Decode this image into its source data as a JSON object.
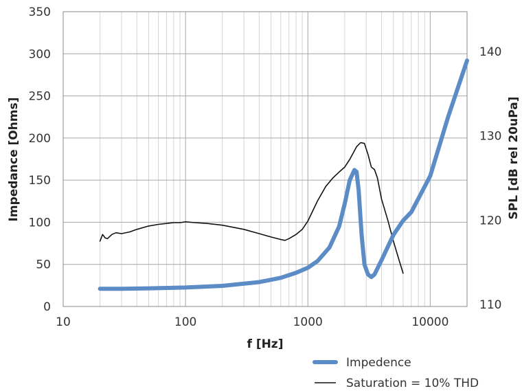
{
  "chart_data": {
    "type": "line",
    "x_scale": "log",
    "xlabel": "f [Hz]",
    "ylabel_left": "Impedance [Ohms]",
    "ylabel_right": "SPL [dB rel 20uPa]",
    "xlim": [
      10,
      20000
    ],
    "ylim_left": [
      0,
      350
    ],
    "ylim_right": [
      110,
      140
    ],
    "x_ticks": [
      10,
      100,
      1000,
      10000
    ],
    "x_tick_labels": [
      "10",
      "100",
      "1000",
      "10000"
    ],
    "y_left_ticks": [
      0,
      50,
      100,
      150,
      200,
      250,
      300,
      350
    ],
    "y_left_tick_labels": [
      "0",
      "50",
      "100",
      "150",
      "200",
      "250",
      "300",
      "350"
    ],
    "y_right_ticks": [
      110,
      120,
      130,
      140
    ],
    "y_right_tick_labels": [
      "110",
      "120",
      "130",
      "140"
    ],
    "grid": true,
    "legend_position": "bottom-right",
    "series": [
      {
        "name": "Impedence",
        "axis": "left",
        "color": "#5b8cc6",
        "x": [
          20,
          30,
          50,
          100,
          200,
          400,
          600,
          800,
          1000,
          1200,
          1500,
          1800,
          2000,
          2200,
          2400,
          2500,
          2600,
          2750,
          2900,
          3100,
          3300,
          3500,
          4000,
          5000,
          6000,
          7000,
          8000,
          10000,
          14000,
          20000
        ],
        "values": [
          21,
          21,
          21.5,
          22.5,
          24.5,
          29,
          34,
          40,
          46,
          54,
          70,
          95,
          122,
          150,
          162,
          160,
          138,
          85,
          50,
          38,
          35,
          38,
          55,
          85,
          102,
          112,
          128,
          155,
          225,
          292
        ]
      },
      {
        "name": "Saturation = 10% THD",
        "axis": "right",
        "color": "#111111",
        "x": [
          20,
          21,
          22,
          23,
          25,
          27,
          30,
          35,
          40,
          50,
          60,
          70,
          80,
          90,
          100,
          120,
          150,
          200,
          300,
          400,
          500,
          600,
          650,
          700,
          800,
          900,
          1000,
          1200,
          1400,
          1600,
          1800,
          2000,
          2200,
          2500,
          2700,
          2900,
          3100,
          3300,
          3500,
          3700,
          4000,
          4500,
          5000,
          5500,
          6000
        ],
        "values": [
          117.5,
          118.3,
          117.9,
          117.8,
          118.3,
          118.5,
          118.4,
          118.6,
          118.9,
          119.3,
          119.5,
          119.6,
          119.7,
          119.7,
          119.8,
          119.7,
          119.6,
          119.4,
          118.9,
          118.4,
          118,
          117.7,
          117.6,
          117.8,
          118.3,
          118.9,
          119.9,
          122.3,
          124,
          125,
          125.7,
          126.3,
          127.2,
          128.7,
          129.2,
          129.1,
          127.8,
          126.3,
          126,
          125,
          122.5,
          120,
          117.5,
          115.5,
          113.7
        ]
      }
    ]
  }
}
